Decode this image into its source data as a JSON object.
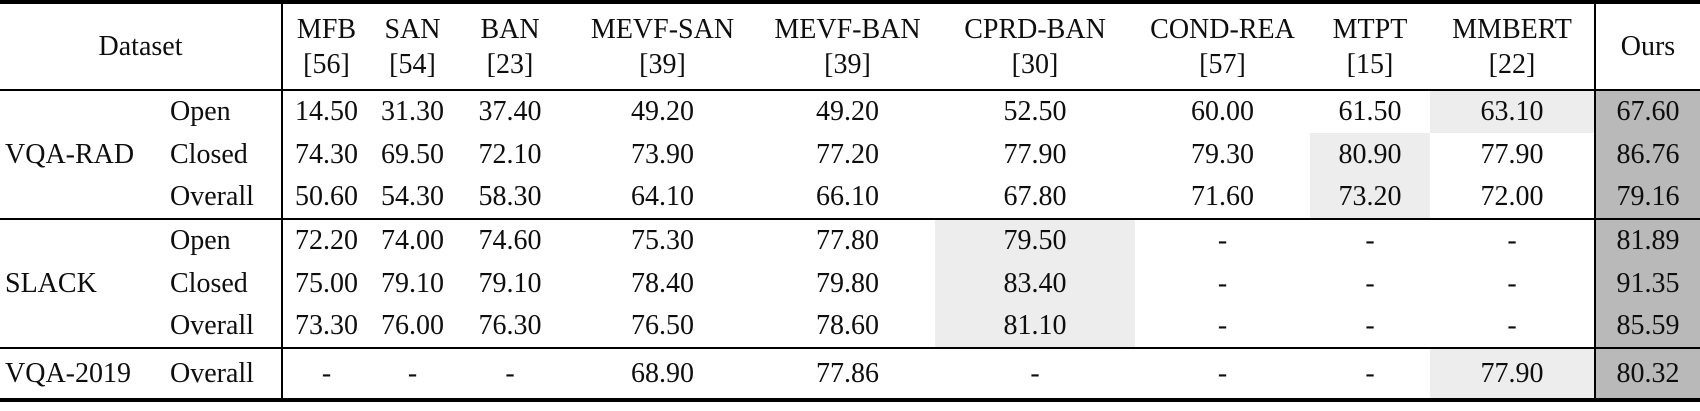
{
  "table": {
    "header": {
      "dataset_label": "Dataset",
      "ours_label": "Ours",
      "methods": [
        {
          "name": "MFB",
          "ref": "[56]"
        },
        {
          "name": "SAN",
          "ref": "[54]"
        },
        {
          "name": "BAN",
          "ref": "[23]"
        },
        {
          "name": "MEVF-SAN",
          "ref": "[39]"
        },
        {
          "name": "MEVF-BAN",
          "ref": "[39]"
        },
        {
          "name": "CPRD-BAN",
          "ref": "[30]"
        },
        {
          "name": "COND-REA",
          "ref": "[57]"
        },
        {
          "name": "MTPT",
          "ref": "[15]"
        },
        {
          "name": "MMBERT",
          "ref": "[22]"
        }
      ]
    },
    "colors": {
      "best_bg": "#b9b9b9",
      "second_best_bg": "#ededed"
    },
    "sections": [
      {
        "dataset": "VQA-RAD",
        "rows": [
          {
            "label": "Open",
            "values": [
              "14.50",
              "31.30",
              "37.40",
              "49.20",
              "49.20",
              "52.50",
              "60.00",
              "61.50",
              "63.10"
            ],
            "second_best_col": 8,
            "ours": "67.60"
          },
          {
            "label": "Closed",
            "values": [
              "74.30",
              "69.50",
              "72.10",
              "73.90",
              "77.20",
              "77.90",
              "79.30",
              "80.90",
              "77.90"
            ],
            "second_best_col": 7,
            "ours": "86.76"
          },
          {
            "label": "Overall",
            "values": [
              "50.60",
              "54.30",
              "58.30",
              "64.10",
              "66.10",
              "67.80",
              "71.60",
              "73.20",
              "72.00"
            ],
            "second_best_col": 7,
            "ours": "79.16"
          }
        ]
      },
      {
        "dataset": "SLACK",
        "rows": [
          {
            "label": "Open",
            "values": [
              "72.20",
              "74.00",
              "74.60",
              "75.30",
              "77.80",
              "79.50",
              "-",
              "-",
              "-"
            ],
            "second_best_col": 5,
            "ours": "81.89"
          },
          {
            "label": "Closed",
            "values": [
              "75.00",
              "79.10",
              "79.10",
              "78.40",
              "79.80",
              "83.40",
              "-",
              "-",
              "-"
            ],
            "second_best_col": 5,
            "ours": "91.35"
          },
          {
            "label": "Overall",
            "values": [
              "73.30",
              "76.00",
              "76.30",
              "76.50",
              "78.60",
              "81.10",
              "-",
              "-",
              "-"
            ],
            "second_best_col": 5,
            "ours": "85.59"
          }
        ]
      },
      {
        "dataset": "VQA-2019",
        "rows": [
          {
            "label": "Overall",
            "values": [
              "-",
              "-",
              "-",
              "68.90",
              "77.86",
              "-",
              "-",
              "-",
              "77.90"
            ],
            "second_best_col": 8,
            "ours": "80.32"
          }
        ]
      }
    ]
  }
}
